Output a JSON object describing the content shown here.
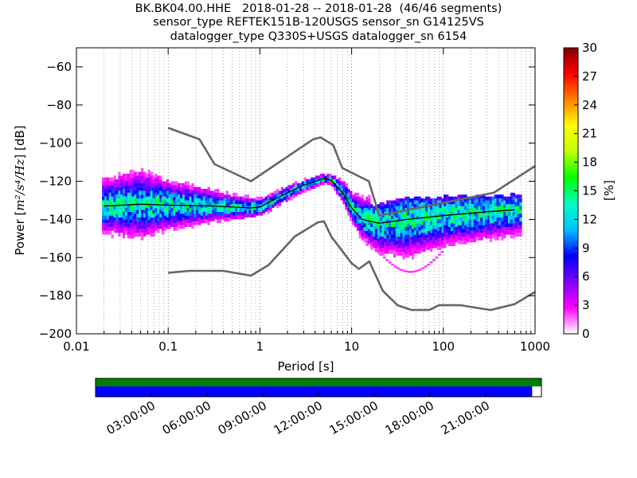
{
  "title": {
    "line1": "BK.BK04.00.HHE   2018-01-28 -- 2018-01-28  (46/46 segments)",
    "line2": "sensor_type REFTEK151B-120USGS sensor_sn G14125VS",
    "line3": "datalogger_type Q330S+USGS datalogger_sn 6154"
  },
  "chart_data": {
    "type": "heatmap",
    "xlabel": "Period [s]",
    "ylabel_prefix": "Power [",
    "ylabel_units": "m²/s⁴/Hz",
    "ylabel_suffix": "] [dB]",
    "xscale": "log",
    "xlim": [
      0.01,
      1000
    ],
    "ylim": [
      -200,
      -50
    ],
    "x_ticks": [
      0.01,
      0.1,
      1,
      10,
      100,
      1000
    ],
    "x_tick_labels": [
      "0.01",
      "0.1",
      "1",
      "10",
      "100",
      "1000"
    ],
    "y_ticks": [
      -200,
      -180,
      -160,
      -140,
      -120,
      -100,
      -80,
      -60
    ],
    "y_tick_labels": [
      "−200",
      "−180",
      "−160",
      "−140",
      "−120",
      "−100",
      "−80",
      "−60"
    ],
    "grid": "dotted, x minor and major",
    "colorbar": {
      "label": "[%]",
      "range": [
        0,
        30
      ],
      "ticks": [
        0,
        3,
        6,
        9,
        12,
        15,
        18,
        21,
        24,
        27,
        30
      ],
      "tick_labels": [
        "0",
        "3",
        "6",
        "9",
        "12",
        "15",
        "18",
        "21",
        "24",
        "27",
        "30"
      ]
    },
    "noise_models": [
      {
        "kind": "high",
        "color": "#666666",
        "points": [
          [
            0.1,
            -92
          ],
          [
            0.22,
            -98
          ],
          [
            0.32,
            -111
          ],
          [
            0.8,
            -120
          ],
          [
            3.8,
            -98
          ],
          [
            4.6,
            -97
          ],
          [
            6.3,
            -101
          ],
          [
            7.9,
            -113
          ],
          [
            15.4,
            -120
          ],
          [
            20,
            -138
          ],
          [
            354.8,
            -126
          ],
          [
            1000,
            -112
          ]
        ]
      },
      {
        "kind": "low",
        "color": "#666666",
        "points": [
          [
            0.1,
            -168
          ],
          [
            0.17,
            -167
          ],
          [
            0.4,
            -167
          ],
          [
            0.8,
            -169.5
          ],
          [
            1.24,
            -164
          ],
          [
            2.4,
            -149
          ],
          [
            4.3,
            -141.5
          ],
          [
            5,
            -141
          ],
          [
            6,
            -149
          ],
          [
            10,
            -163
          ],
          [
            12,
            -166
          ],
          [
            15.6,
            -162
          ],
          [
            21.9,
            -177.5
          ],
          [
            31.6,
            -185
          ],
          [
            45,
            -187.5
          ],
          [
            70,
            -187.5
          ],
          [
            90,
            -185
          ],
          [
            154,
            -185
          ],
          [
            328,
            -187.5
          ],
          [
            600,
            -184.4
          ],
          [
            1000,
            -178
          ]
        ]
      }
    ],
    "mean_curve": {
      "color": "#000000",
      "points": [
        [
          0.02,
          -133
        ],
        [
          0.05,
          -132
        ],
        [
          0.1,
          -132.5
        ],
        [
          0.3,
          -133
        ],
        [
          0.8,
          -134
        ],
        [
          1,
          -133.5
        ],
        [
          2,
          -126
        ],
        [
          3,
          -122
        ],
        [
          5,
          -118.5
        ],
        [
          6,
          -119.5
        ],
        [
          8,
          -126
        ],
        [
          10,
          -134
        ],
        [
          13,
          -140
        ],
        [
          20,
          -142
        ],
        [
          40,
          -140
        ],
        [
          100,
          -138
        ],
        [
          300,
          -136
        ],
        [
          600,
          -135
        ]
      ]
    },
    "color_scale": [
      "#ffffff",
      "#ff00ff",
      "#8000ff",
      "#0000ff",
      "#00c0ff",
      "#00ffc0",
      "#00ff00",
      "#c0ff00",
      "#ffff00",
      "#ff8000",
      "#ff0000",
      "#800000"
    ],
    "time_axis": {
      "tick_labels": [
        "03:00:00",
        "06:00:00",
        "09:00:00",
        "12:00:00",
        "15:00:00",
        "18:00:00",
        "21:00:00"
      ],
      "tick_hours": [
        3,
        6,
        9,
        12,
        15,
        18,
        21
      ],
      "hours_total": 24,
      "data_available_color": "#008000",
      "psd_used_color": "#0000ff",
      "psd_used_until_hour": 23.5
    }
  }
}
